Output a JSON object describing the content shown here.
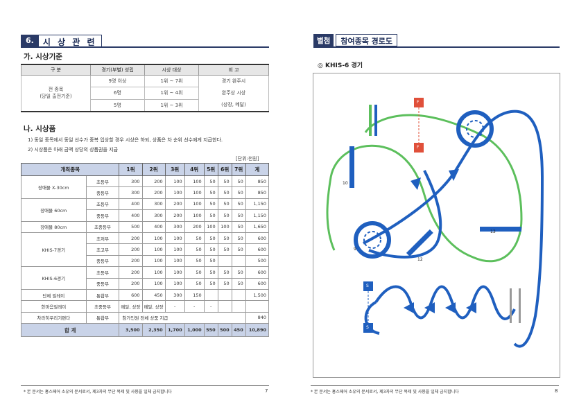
{
  "left": {
    "section_num": "6.",
    "section_title": "시 상 관 련",
    "sub_a": "가. 시상기준",
    "t1": {
      "headers": [
        "구 분",
        "경기(부별) 성립",
        "시상 대상",
        "비 고"
      ],
      "rows": [
        [
          "9명 이상",
          "1위 ~ 7위"
        ],
        [
          "6명",
          "1위 ~ 4위"
        ],
        [
          "5명",
          "1위 ~ 3위"
        ]
      ],
      "group_label_1": "전 종목",
      "group_label_2": "(당일 출전기준)",
      "remark_1": "경기 완주시",
      "remark_2": "완주상 시상",
      "remark_3": "(상장, 메달)"
    },
    "sub_b": "나. 시상품",
    "note_1": "1)  동일 종목에서 동일 선수가 중복 입상할 경우 시상은 하되, 상품은 차 순위 선수에게 지급한다.",
    "note_2": "2)  시상품은 아래 금액 상당의 상품권을 지급",
    "unit": "[단위:천원]",
    "t2": {
      "headers": [
        "개최종목",
        "1위",
        "2위",
        "3위",
        "4위",
        "5위",
        "6위",
        "7위",
        "계"
      ],
      "groups": [
        {
          "name": "장애물 X-30cm",
          "rows": [
            {
              "div": "초등부",
              "v": [
                "300",
                "200",
                "100",
                "100",
                "50",
                "50",
                "50",
                "850"
              ]
            },
            {
              "div": "중등부",
              "v": [
                "300",
                "200",
                "100",
                "100",
                "50",
                "50",
                "50",
                "850"
              ]
            }
          ]
        },
        {
          "name": "장애물 60cm",
          "rows": [
            {
              "div": "초등부",
              "v": [
                "400",
                "300",
                "200",
                "100",
                "50",
                "50",
                "50",
                "1,150"
              ]
            },
            {
              "div": "중등부",
              "v": [
                "400",
                "300",
                "200",
                "100",
                "50",
                "50",
                "50",
                "1,150"
              ]
            }
          ]
        },
        {
          "name": "장애물 80cm",
          "rows": [
            {
              "div": "초중등부",
              "v": [
                "500",
                "400",
                "300",
                "200",
                "100",
                "100",
                "50",
                "1,650"
              ]
            }
          ]
        },
        {
          "name": "KHIS-7경기",
          "rows": [
            {
              "div": "초저부",
              "v": [
                "200",
                "100",
                "100",
                "50",
                "50",
                "50",
                "50",
                "600"
              ]
            },
            {
              "div": "초고부",
              "v": [
                "200",
                "100",
                "100",
                "50",
                "50",
                "50",
                "50",
                "600"
              ]
            },
            {
              "div": "중등부",
              "v": [
                "200",
                "100",
                "100",
                "50",
                "50",
                "",
                "",
                "500"
              ]
            }
          ]
        },
        {
          "name": "KHIS-6경기",
          "rows": [
            {
              "div": "초등부",
              "v": [
                "200",
                "100",
                "100",
                "50",
                "50",
                "50",
                "50",
                "600"
              ]
            },
            {
              "div": "중등부",
              "v": [
                "200",
                "100",
                "100",
                "50",
                "50",
                "50",
                "50",
                "600"
              ]
            }
          ]
        },
        {
          "name": "단체 릴레이",
          "rows": [
            {
              "div": "통합부",
              "v": [
                "600",
                "450",
                "300",
                "150",
                "",
                "",
                "",
                "1,500"
              ]
            }
          ]
        },
        {
          "name": "한마음릴레이",
          "rows": [
            {
              "div": "초중등부",
              "v": [
                "메달, 상장",
                "메달, 상장",
                "-",
                "-",
                "-",
                "",
                "",
                " "
              ]
            }
          ]
        },
        {
          "name": "차라히우리기편다",
          "rows": [
            {
              "div": "통합부",
              "v": [
                "참가인원 전체 상품 지급",
                "840"
              ]
            }
          ]
        }
      ],
      "total_label": "합 계",
      "total": [
        "3,500",
        "2,350",
        "1,700",
        "1,000",
        "550",
        "500",
        "450",
        "10,890"
      ]
    },
    "footer": "* 본 문서는 홍스페어 소유의 문서로서, 제3자의 무단 복제 및 사용을 일체 금지합니다",
    "page_no": "7"
  },
  "right": {
    "badge": "별첨",
    "title": "참여종목 경로도",
    "course_label": "◎ KHIS-6 경기",
    "marker_labels": [
      "10",
      "9",
      "12",
      "13"
    ],
    "start_label": "S",
    "flag_label": "F",
    "footer": "* 본 문서는 홍스페어 소유의 문서로서, 제3자의 무단 복제 및 사용을 일체 금지합니다",
    "page_no": "8",
    "colors": {
      "blue_path": "#1f5fbf",
      "green_path": "#5cbf5c",
      "red_flag": "#e0503a",
      "navy": "#2a3a66"
    }
  }
}
